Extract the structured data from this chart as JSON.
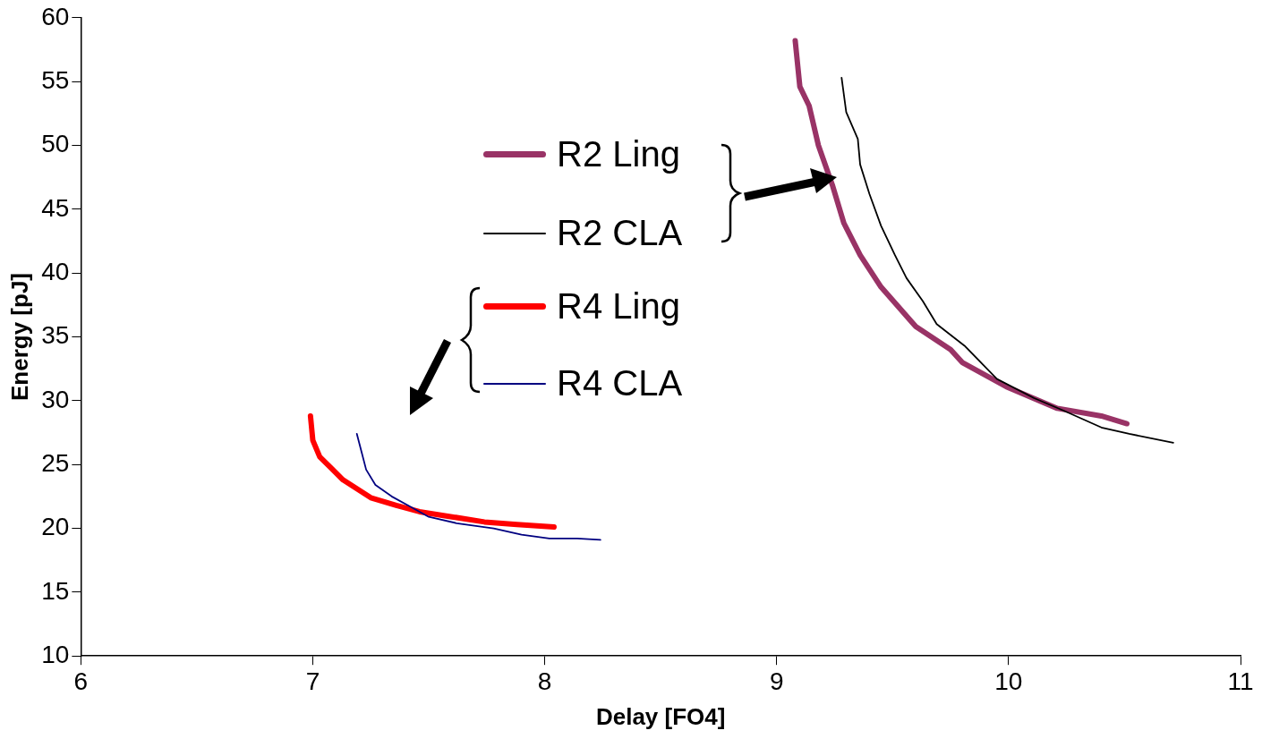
{
  "chart_data": {
    "type": "line",
    "xlabel": "Delay [FO4]",
    "ylabel": "Energy [pJ]",
    "xlim": [
      6,
      11
    ],
    "xticks": [
      6,
      7,
      8,
      9,
      10,
      11
    ],
    "ylim": [
      10,
      60
    ],
    "yticks": [
      10,
      15,
      20,
      25,
      30,
      35,
      40,
      45,
      50,
      55,
      60
    ],
    "grid": false,
    "legend": "center",
    "marker": "none",
    "line_style": "solid",
    "series": [
      {
        "name": "R2 Ling",
        "color": "#993366",
        "x": [
          9.08,
          9.1,
          9.14,
          9.18,
          9.24,
          9.29,
          9.36,
          9.45,
          9.6,
          9.75,
          9.8,
          9.99,
          10.21,
          10.4,
          10.51
        ],
        "values": [
          58.2,
          54.6,
          53.1,
          50.0,
          46.9,
          43.9,
          41.4,
          38.9,
          35.8,
          34.0,
          33.0,
          31.1,
          29.4,
          28.8,
          28.2
        ]
      },
      {
        "name": "R2 CLA",
        "color": "#000000",
        "x": [
          9.28,
          9.3,
          9.35,
          9.36,
          9.4,
          9.45,
          9.51,
          9.56,
          9.63,
          9.69,
          9.81,
          9.95,
          10.11,
          10.24,
          10.4,
          10.52,
          10.71
        ],
        "values": [
          55.3,
          52.6,
          50.5,
          48.5,
          46.2,
          43.7,
          41.4,
          39.6,
          37.8,
          36.0,
          34.3,
          31.7,
          30.2,
          29.2,
          27.9,
          27.4,
          26.7
        ]
      },
      {
        "name": "R4 Ling",
        "color": "#ff0000",
        "x": [
          6.99,
          7.0,
          7.03,
          7.08,
          7.13,
          7.19,
          7.25,
          7.36,
          7.46,
          7.6,
          7.74,
          7.88,
          8.04
        ],
        "values": [
          28.8,
          26.9,
          25.6,
          24.7,
          23.8,
          23.1,
          22.4,
          21.8,
          21.3,
          20.9,
          20.5,
          20.3,
          20.1
        ]
      },
      {
        "name": "R4 CLA",
        "color": "#000080",
        "x": [
          7.19,
          7.2,
          7.23,
          7.27,
          7.34,
          7.42,
          7.5,
          7.62,
          7.78,
          7.9,
          8.02,
          8.14,
          8.24
        ],
        "values": [
          27.4,
          26.7,
          24.6,
          23.4,
          22.5,
          21.7,
          20.9,
          20.4,
          20.0,
          19.5,
          19.2,
          19.2,
          19.1
        ]
      }
    ]
  }
}
